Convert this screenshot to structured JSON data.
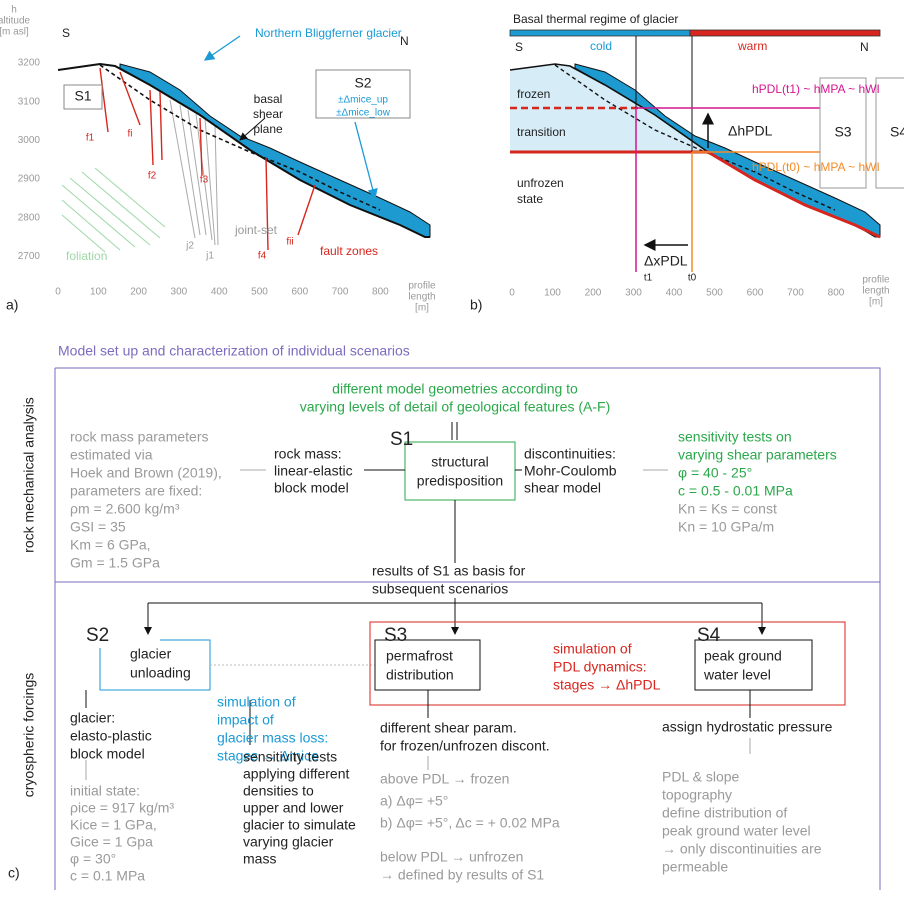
{
  "panel_a": {
    "label": "a)",
    "y_axis_title": [
      "h",
      "altitude",
      "[m asl]"
    ],
    "y_ticks": [
      "3200",
      "3100",
      "3000",
      "2900",
      "2800",
      "2700"
    ],
    "x_ticks": [
      "0",
      "100",
      "200",
      "300",
      "400",
      "500",
      "600",
      "700",
      "800"
    ],
    "x_axis_title": [
      "profile",
      "length",
      "[m]"
    ],
    "south": "S",
    "north": "N",
    "glacier_name": "Northern Bliggferner glacier",
    "s1": "S1",
    "s2": {
      "title": "S2",
      "lines": [
        "±Δmice_up",
        "±Δmice_low"
      ]
    },
    "shear_plane": [
      "basal",
      "shear",
      "plane"
    ],
    "faults": [
      "f1",
      "fi",
      "f2",
      "f3",
      "f4",
      "fii"
    ],
    "joints": [
      "j2",
      "j1"
    ],
    "joint_set": "joint-set",
    "foliation": "foliation",
    "fault_zones": "fault zones"
  },
  "panel_b": {
    "label": "b)",
    "title": "Basal thermal regime of glacier",
    "south": "S",
    "north": "N",
    "cold": "cold",
    "warm": "warm",
    "x_ticks": [
      "0",
      "100",
      "200",
      "300",
      "400",
      "500",
      "600",
      "700",
      "800"
    ],
    "x_axis_title": [
      "profile",
      "length",
      "[m]"
    ],
    "frozen": "frozen",
    "transition": "transition",
    "unfrozen": [
      "unfrozen",
      "state"
    ],
    "h_t1": "hPDL(t1) ~ hMPA ~ hWI",
    "h_t0": "hPDL(t0) ~ hMPA ~ hWI",
    "dh": "ΔhPDL",
    "dx": "ΔxPDL",
    "t1": "t1",
    "t0": "t0",
    "s3": "S3",
    "s4": "S4"
  },
  "panel_c": {
    "label": "c)",
    "title": "Model set up and characterization of individual scenarios",
    "section_rock": "rock mechanical analysis",
    "section_cryo": "cryospheric forcings",
    "geometries": [
      "different model geometries according to",
      "varying levels of detail of geological features (A-F)"
    ],
    "s1": {
      "title": "S1",
      "box": [
        "structural",
        "predisposition"
      ]
    },
    "rock_params": [
      "rock mass parameters",
      "estimated via",
      "Hoek and Brown (2019),",
      "parameters are fixed:",
      "ρm = 2.600 kg/m³",
      "GSI = 35",
      "Km = 6 GPa,",
      "Gm = 1.5 GPa"
    ],
    "rock_mass": [
      "rock mass:",
      "linear-elastic",
      "block model"
    ],
    "discontinuities": [
      "discontinuities:",
      "Mohr-Coulomb",
      "shear model"
    ],
    "sensitivity_shear": [
      "sensitivity tests on",
      "varying shear parameters",
      "φ = 40 - 25°",
      "c = 0.5 - 0.01 MPa"
    ],
    "stiffness": [
      "Kn = Ks = const",
      "Kn = 10 GPa/m"
    ],
    "results_s1": [
      "results of S1 as basis for",
      "subsequent scenarios"
    ],
    "s2": {
      "title": "S2",
      "box": [
        "glacier",
        "unloading"
      ]
    },
    "s2_sim": [
      "simulation of",
      "impact of",
      "glacier mass loss:",
      "stages → Δmice"
    ],
    "s3": {
      "title": "S3",
      "box": [
        "permafrost",
        "distribution"
      ]
    },
    "pdl_sim": [
      "simulation of",
      "PDL dynamics:",
      "stages → ΔhPDL"
    ],
    "s4": {
      "title": "S4",
      "box": [
        "peak ground",
        "water level"
      ]
    },
    "glacier_model": [
      "glacier:",
      "elasto-plastic",
      "block model"
    ],
    "initial_state": [
      "initial state:",
      "ρice = 917 kg/m³",
      "Kice = 1 GPa,",
      "Gice = 1 Gpa",
      "φ = 30°",
      "c = 0.1 MPa"
    ],
    "density_tests": [
      "sensitivity tests",
      "applying different",
      "densities to",
      "upper and lower",
      "glacier to simulate",
      "varying glacier",
      "mass"
    ],
    "shear_param": [
      "different shear param.",
      "for frozen/unfrozen discont."
    ],
    "above_pdl": [
      "above PDL → frozen",
      "a) Δφ= +5°",
      "b) Δφ= +5°, Δc = + 0.02 MPa"
    ],
    "below_pdl": [
      "below PDL → unfrozen",
      "→ defined by results of S1"
    ],
    "hydrostatic": "assign hydrostatic pressure",
    "water_level": [
      "PDL & slope",
      "topography",
      "define distribution of",
      "peak ground water level",
      "→ only discontinuities are",
      "permeable"
    ]
  }
}
